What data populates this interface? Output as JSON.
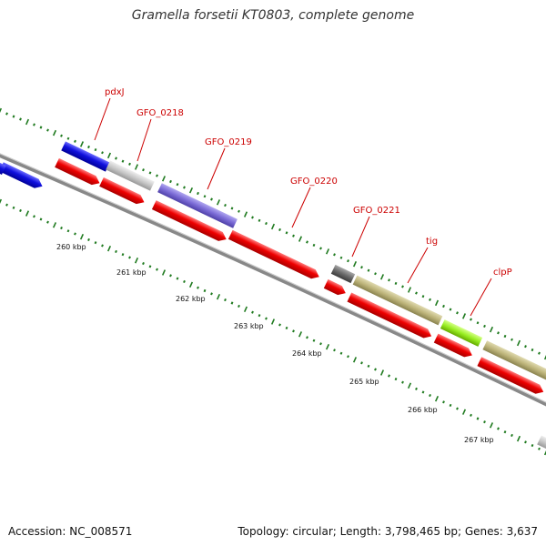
{
  "title": "Gramella forsetii KT0803, complete genome",
  "footer": {
    "accession": "Accession: NC_008571",
    "summary": "Topology: circular; Length: 3,798,465 bp; Genes: 3,637"
  },
  "colors": {
    "backbone": "#8a8a8a",
    "tick_dots": "#1f7a1f",
    "label": "#cc0000",
    "cds_forward": "#ee0000",
    "cds_blue": "#1010dd",
    "cds_grey": "#c8c8c8",
    "cds_purple": "#7b6bd6",
    "cds_dark": "#6a6a6a",
    "cds_olive": "#bdb47a",
    "cds_lime": "#99ee22"
  },
  "kbp_labels": [
    "260 kbp",
    "261 kbp",
    "262 kbp",
    "263 kbp",
    "264 kbp",
    "265 kbp",
    "266 kbp",
    "267 kbp"
  ],
  "gene_labels": [
    "pdxJ",
    "GFO_0218",
    "GFO_0219",
    "GFO_0220",
    "GFO_0221",
    "tig",
    "clpP"
  ]
}
